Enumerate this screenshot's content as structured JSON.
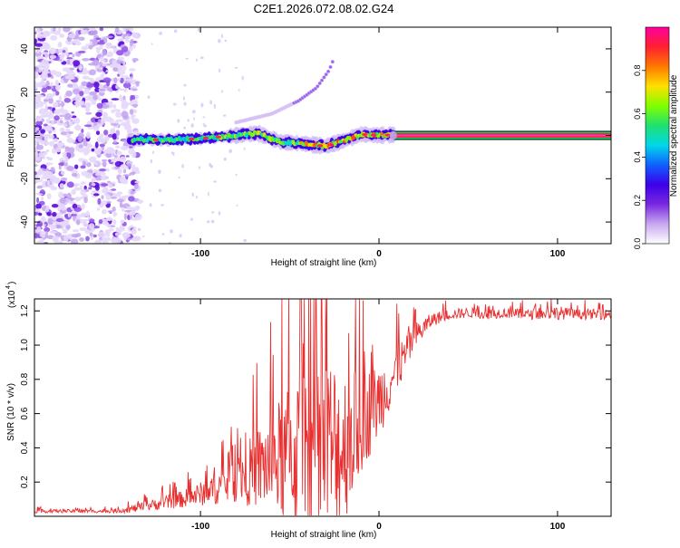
{
  "chart_data": [
    {
      "type": "heatmap",
      "title": "C2E1.2026.072.08.02.G24",
      "xlabel": "Height of straight line (km)",
      "ylabel": "Frequency (Hz)",
      "xlim": [
        -193,
        130
      ],
      "ylim": [
        -50,
        50
      ],
      "xticks": [
        -100,
        0,
        100
      ],
      "yticks": [
        -40,
        -20,
        0,
        20,
        40
      ],
      "colorbar": {
        "label": "Normalized spectral amplitude",
        "range": [
          0,
          1
        ],
        "ticks": [
          "0.0",
          "0.2",
          "0.4",
          "0.6",
          "0.8"
        ],
        "colors": [
          "#ffffff",
          "#c8a8f0",
          "#7a28e0",
          "#3c00e8",
          "#1060ff",
          "#00d8e8",
          "#20e070",
          "#80ff00",
          "#ffe000",
          "#ff7800",
          "#ff2030",
          "#ff00a0"
        ]
      },
      "features": [
        {
          "name": "noise",
          "x_range": [
            -193,
            -135
          ],
          "freq_range": [
            -50,
            50
          ]
        },
        {
          "name": "main-trace",
          "x": [
            -138,
            -120,
            -100,
            -80,
            -68,
            -55,
            -40,
            -30,
            -20,
            -10,
            0,
            8,
            130
          ],
          "freq": [
            -2,
            -2,
            -1.5,
            0,
            1,
            -3,
            -4,
            -5,
            -2.5,
            0.5,
            0,
            0.3,
            0
          ]
        },
        {
          "name": "second-trace",
          "x": [
            -80,
            -60,
            -45,
            -35,
            -28,
            -25
          ],
          "freq": [
            6,
            10,
            16,
            22,
            30,
            36
          ]
        }
      ]
    },
    {
      "type": "line",
      "xlabel": "Height of straight line (km)",
      "ylabel": "SNR (10 * v/v)",
      "y_multiplier": "(x10",
      "y_multiplier_exp": "4",
      "xlim": [
        -193,
        130
      ],
      "ylim": [
        0,
        1.27
      ],
      "xticks": [
        -100,
        0,
        100
      ],
      "yticks": [
        "0.2",
        "0.4",
        "0.6",
        "0.8",
        "1.0",
        "1.2"
      ],
      "series": [
        {
          "name": "SNR",
          "color": "#e83030",
          "x": [
            -193,
            -150,
            -140,
            -130,
            -120,
            -110,
            -100,
            -90,
            -80,
            -70,
            -60,
            -50,
            -40,
            -30,
            -20,
            -10,
            0,
            10,
            20,
            30,
            40,
            50,
            60,
            70,
            80,
            90,
            100,
            110,
            120,
            130
          ],
          "y": [
            0.03,
            0.03,
            0.04,
            0.06,
            0.08,
            0.1,
            0.13,
            0.17,
            0.22,
            0.27,
            0.32,
            0.35,
            0.38,
            0.36,
            0.42,
            0.55,
            0.68,
            0.85,
            1.05,
            1.15,
            1.18,
            1.19,
            1.18,
            1.19,
            1.18,
            1.18,
            1.19,
            1.18,
            1.18,
            1.18
          ],
          "spread": [
            0.01,
            0.01,
            0.02,
            0.03,
            0.04,
            0.05,
            0.07,
            0.1,
            0.14,
            0.22,
            0.3,
            0.42,
            0.55,
            0.62,
            0.48,
            0.3,
            0.22,
            0.14,
            0.08,
            0.04,
            0.03,
            0.03,
            0.03,
            0.03,
            0.03,
            0.03,
            0.04,
            0.03,
            0.03,
            0.03
          ]
        }
      ]
    }
  ]
}
